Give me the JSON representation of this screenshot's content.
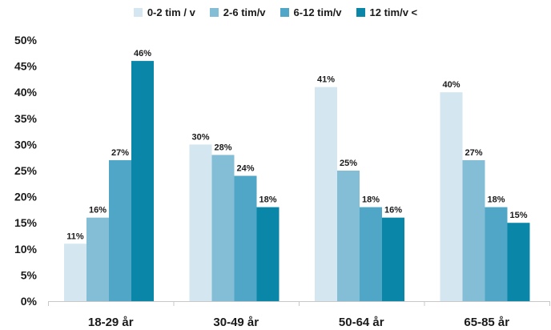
{
  "chart_data": {
    "type": "bar",
    "title": "",
    "xlabel": "",
    "ylabel": "",
    "categories": [
      "18-29 år",
      "30-49 år",
      "50-64 år",
      "65-85 år"
    ],
    "series": [
      {
        "name": "0-2 tim / v",
        "color": "#d4e6f0",
        "values": [
          11,
          30,
          41,
          40
        ],
        "labels": [
          "11%",
          "30%",
          "41%",
          "40%"
        ]
      },
      {
        "name": "2-6 tim/v",
        "color": "#84bdd6",
        "values": [
          16,
          28,
          25,
          27
        ],
        "labels": [
          "16%",
          "28%",
          "25%",
          "27%"
        ]
      },
      {
        "name": "6-12 tim/v",
        "color": "#50a6c6",
        "values": [
          27,
          24,
          18,
          18
        ],
        "labels": [
          "27%",
          "24%",
          "18%",
          "18%"
        ]
      },
      {
        "name": "12 tim/v <",
        "color": "#0a86a9",
        "values": [
          46,
          18,
          16,
          15
        ],
        "labels": [
          "46%",
          "18%",
          "16%",
          "15%"
        ]
      }
    ],
    "ylim": [
      0,
      50
    ],
    "yticks": [
      0,
      5,
      10,
      15,
      20,
      25,
      30,
      35,
      40,
      45,
      50
    ],
    "ytick_labels": [
      "0%",
      "5%",
      "10%",
      "15%",
      "20%",
      "25%",
      "30%",
      "35%",
      "40%",
      "45%",
      "50%"
    ],
    "grid": false,
    "legend": "top-center"
  }
}
